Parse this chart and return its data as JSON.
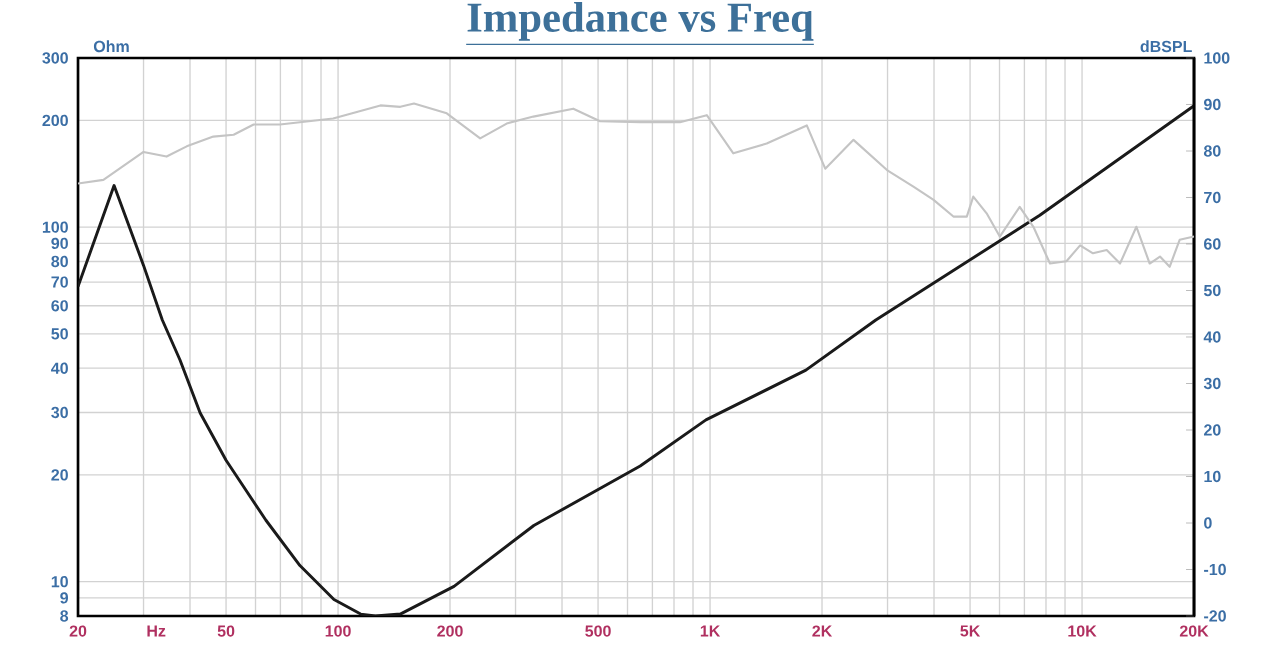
{
  "chart_data": {
    "type": "line",
    "title": "Impedance vs Freq",
    "xlabel": "Hz",
    "ylabel": "Ohm",
    "y2label": "dBSPL",
    "xlim": [
      20,
      20000
    ],
    "ylim": [
      8,
      300
    ],
    "y2lim": [
      -20,
      100
    ],
    "log": "xy",
    "grid": true,
    "xticks": [
      20,
      {
        "value": 30,
        "label": null
      },
      {
        "value": 40,
        "label": null
      },
      50,
      {
        "value": 60,
        "label": null
      },
      {
        "value": 70,
        "label": null
      },
      {
        "value": 80,
        "label": null
      },
      {
        "value": 90,
        "label": null
      },
      100,
      200,
      {
        "value": 300,
        "label": null
      },
      {
        "value": 400,
        "label": null
      },
      500,
      {
        "value": 600,
        "label": null
      },
      {
        "value": 700,
        "label": null
      },
      {
        "value": 800,
        "label": null
      },
      {
        "value": 900,
        "label": null
      },
      {
        "value": 1000,
        "label": "1K"
      },
      {
        "value": 2000,
        "label": "2K"
      },
      {
        "value": 3000,
        "label": null
      },
      {
        "value": 4000,
        "label": null
      },
      {
        "value": 5000,
        "label": "5K"
      },
      {
        "value": 6000,
        "label": null
      },
      {
        "value": 7000,
        "label": null
      },
      {
        "value": 8000,
        "label": null
      },
      {
        "value": 9000,
        "label": null
      },
      {
        "value": 10000,
        "label": "10K"
      },
      {
        "value": 20000,
        "label": "20K"
      }
    ],
    "yticks": [
      8,
      9,
      10,
      20,
      30,
      40,
      50,
      60,
      70,
      80,
      90,
      100,
      200,
      300
    ],
    "y2ticks": [
      -20,
      -10,
      0,
      10,
      20,
      30,
      40,
      50,
      60,
      70,
      80,
      90,
      100
    ],
    "series": [
      {
        "color": "#1a1a1a",
        "x": [
          20,
          25,
          30,
          33.7,
          37.6,
          42.6,
          50,
          64,
          79,
          97.5,
          115,
          126,
          147,
          205,
          336,
          649,
          975,
          1810,
          2790,
          7700,
          20000
        ],
        "values": [
          68,
          131,
          78,
          54.7,
          42.2,
          29.9,
          22,
          14.9,
          11.1,
          8.9,
          8.1,
          8,
          8.1,
          9.7,
          14.4,
          21.2,
          28.6,
          39.5,
          54.7,
          108,
          220
        ]
      },
      {
        "color": "#c4c4c4",
        "axis": "y2",
        "x": [
          20,
          23.4,
          30,
          34.6,
          39.2,
          46.2,
          52.4,
          59.3,
          69.8,
          97,
          130,
          147,
          160,
          196,
          241,
          284,
          335,
          429,
          506,
          649,
          830,
          980,
          1155,
          1420,
          1820,
          2040,
          2430,
          2990,
          3530,
          3990,
          4510,
          4900,
          5100,
          5540,
          6010,
          6800,
          7400,
          8200,
          9080,
          9880,
          10700,
          11650,
          12650,
          14000,
          15200,
          16200,
          17200,
          18300,
          20000
        ],
        "values": [
          73,
          73.8,
          79.8,
          78.8,
          81,
          83.1,
          83.5,
          85.7,
          85.7,
          87,
          89.8,
          89.5,
          90.2,
          88.1,
          82.7,
          85.9,
          87.4,
          89.1,
          86.4,
          86.2,
          86.2,
          87.7,
          79.5,
          81.6,
          85.5,
          76.2,
          82.4,
          75.9,
          72.3,
          69.5,
          65.9,
          65.9,
          70.2,
          66.6,
          61.6,
          68,
          63.7,
          55.8,
          56.3,
          59.7,
          58,
          58.7,
          55.8,
          63.7,
          55.8,
          57.3,
          55.1,
          60.9,
          61.6
        ]
      }
    ]
  }
}
